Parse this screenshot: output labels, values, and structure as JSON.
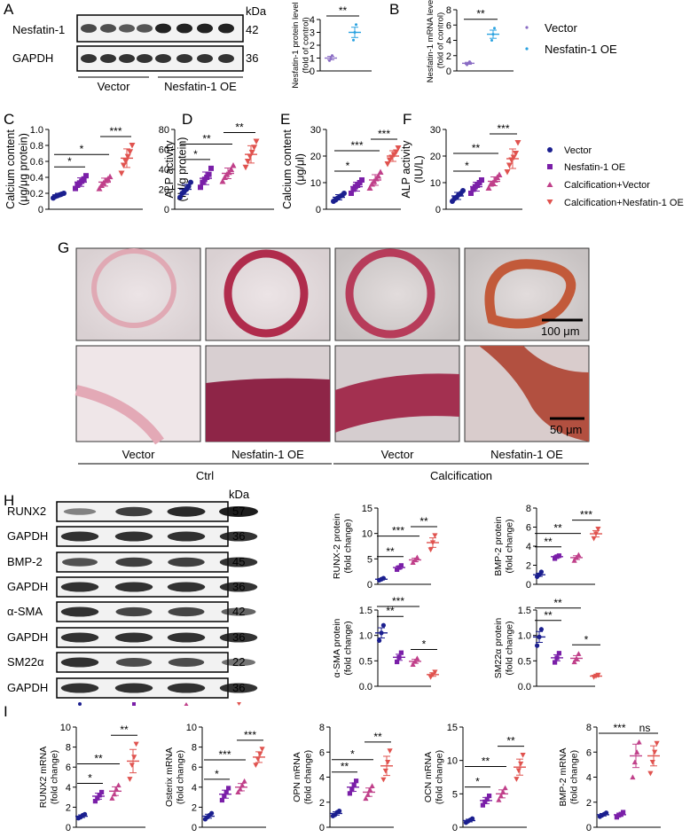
{
  "colors": {
    "vector": "#1b1f8f",
    "nesfatin": "#7a1fa8",
    "calc_vector": "#c0408a",
    "calc_nesfatin": "#e0534f",
    "vector_b": "#8a6cc4",
    "nesfatin_b": "#2aa2e0"
  },
  "panel_letters": [
    "A",
    "B",
    "C",
    "D",
    "E",
    "F",
    "G",
    "H",
    "I"
  ],
  "blot_A": {
    "rows": [
      {
        "label": "Nesfatin-1",
        "kda": "42"
      },
      {
        "label": "GAPDH",
        "kda": "36"
      }
    ],
    "unit": "kDa",
    "groups": [
      "Vector",
      "Nesfatin-1 OE"
    ]
  },
  "legend_B": [
    "Vector",
    "Nesfatin-1 OE"
  ],
  "legend_CF": [
    "Vector",
    "Nesfatin-1 OE",
    "Calcification+Vector",
    "Calcification+Nesfatin-1 OE"
  ],
  "histology": {
    "scale_top": "100 μm",
    "scale_bottom": "50 μm",
    "columns": [
      "Vector",
      "Nesfatin-1 OE",
      "Vector",
      "Nesfatin-1 OE"
    ],
    "groups": [
      "Ctrl",
      "Calcification"
    ]
  },
  "blot_H": {
    "unit": "kDa",
    "rows": [
      {
        "label": "RUNX2",
        "kda": "57"
      },
      {
        "label": "GAPDH",
        "kda": "36"
      },
      {
        "label": "BMP-2",
        "kda": "45"
      },
      {
        "label": "GAPDH",
        "kda": "36"
      },
      {
        "label": "α-SMA",
        "kda": "42"
      },
      {
        "label": "GAPDH",
        "kda": "36"
      },
      {
        "label": "SM22α",
        "kda": "22"
      },
      {
        "label": "GAPDH",
        "kda": "36"
      }
    ]
  },
  "chart_data": [
    {
      "id": "A",
      "type": "scatter",
      "categories": [
        "Vector",
        "Nesfatin-1 OE"
      ],
      "values": [
        1.0,
        3.0
      ],
      "points": [
        [
          0.8,
          1.0,
          1.2
        ],
        [
          2.4,
          3.0,
          3.6
        ]
      ],
      "ylabel": "Nesfatin-1 protein level (fold of control)",
      "ylim": [
        0,
        4
      ],
      "yticks": [
        0,
        1,
        2,
        3,
        4
      ],
      "sig": [
        {
          "a": 0,
          "b": 1,
          "text": "**"
        }
      ]
    },
    {
      "id": "B",
      "type": "scatter",
      "categories": [
        "Vector",
        "Nesfatin-1 OE"
      ],
      "values": [
        1.0,
        4.8
      ],
      "points": [
        [
          0.8,
          1.0,
          1.2
        ],
        [
          4.0,
          4.8,
          5.6
        ]
      ],
      "ylabel": "Nesfatin-1 mRNA level (fold of control)",
      "ylim": [
        0,
        8
      ],
      "yticks": [
        0,
        2,
        4,
        6,
        8
      ],
      "sig": [
        {
          "a": 0,
          "b": 1,
          "text": "**"
        }
      ]
    },
    {
      "id": "C",
      "type": "scatter",
      "categories": [
        "Vector",
        "Nesfatin-1 OE",
        "Calcification+Vector",
        "Calcification+Nesfatin-1 OE"
      ],
      "values": [
        0.18,
        0.34,
        0.34,
        0.64
      ],
      "points": [
        [
          0.14,
          0.16,
          0.17,
          0.18,
          0.19,
          0.2
        ],
        [
          0.26,
          0.3,
          0.33,
          0.35,
          0.38,
          0.42
        ],
        [
          0.26,
          0.3,
          0.33,
          0.36,
          0.38,
          0.41
        ],
        [
          0.45,
          0.55,
          0.6,
          0.66,
          0.72,
          0.8
        ]
      ],
      "ylabel": "Calcium content (μg/μg protein)",
      "ylim": [
        0,
        1.0
      ],
      "yticks": [
        0,
        0.2,
        0.4,
        0.6,
        0.8,
        1.0
      ],
      "sig": [
        {
          "a": 0,
          "b": 1,
          "text": "*"
        },
        {
          "a": 0,
          "b": 2,
          "text": "*"
        },
        {
          "a": 2,
          "b": 3,
          "text": "***"
        }
      ]
    },
    {
      "id": "D",
      "type": "scatter",
      "categories": [
        "Vector",
        "Nesfatin-1 OE",
        "Calcification+Vector",
        "Calcification+Nesfatin-1 OE"
      ],
      "values": [
        20,
        31,
        36,
        55
      ],
      "points": [
        [
          12,
          16,
          18,
          20,
          23,
          27
        ],
        [
          22,
          27,
          30,
          32,
          35,
          41
        ],
        [
          28,
          32,
          35,
          37,
          40,
          44
        ],
        [
          42,
          48,
          53,
          57,
          62,
          68
        ]
      ],
      "ylabel": "ALP activity (IU/g protein)",
      "ylim": [
        0,
        80
      ],
      "yticks": [
        0,
        20,
        40,
        60,
        80
      ],
      "sig": [
        {
          "a": 0,
          "b": 1,
          "text": "*"
        },
        {
          "a": 0,
          "b": 2,
          "text": "**"
        },
        {
          "a": 2,
          "b": 3,
          "text": "**"
        }
      ]
    },
    {
      "id": "E",
      "type": "scatter",
      "categories": [
        "Vector",
        "Nesfatin-1 OE",
        "Calcification+Vector",
        "Calcification+Nesfatin-1 OE"
      ],
      "values": [
        4.5,
        8.5,
        11,
        20
      ],
      "points": [
        [
          3,
          3.5,
          4.2,
          4.8,
          5.2,
          6
        ],
        [
          6,
          7.5,
          8.5,
          9,
          10,
          11
        ],
        [
          8,
          9.5,
          10.5,
          11.5,
          12.5,
          14
        ],
        [
          17,
          18.5,
          19.5,
          20.5,
          21.5,
          23
        ]
      ],
      "ylabel": "Calcium content (μg/μl)",
      "ylim": [
        0,
        30
      ],
      "yticks": [
        0,
        10,
        20,
        30
      ],
      "sig": [
        {
          "a": 0,
          "b": 1,
          "text": "*"
        },
        {
          "a": 0,
          "b": 2,
          "text": "***"
        },
        {
          "a": 2,
          "b": 3,
          "text": "***"
        }
      ]
    },
    {
      "id": "F",
      "type": "scatter",
      "categories": [
        "Vector",
        "Nesfatin-1 OE",
        "Calcification+Vector",
        "Calcification+Nesfatin-1 OE"
      ],
      "values": [
        5,
        8.5,
        10.5,
        19
      ],
      "points": [
        [
          3,
          4,
          4.5,
          5.5,
          6,
          7
        ],
        [
          6,
          7.5,
          8.5,
          9,
          10,
          11
        ],
        [
          8,
          9.5,
          10,
          11,
          12,
          13
        ],
        [
          14,
          16.5,
          18.5,
          19.5,
          21,
          25
        ]
      ],
      "ylabel": "ALP activity (IU/L)",
      "ylim": [
        0,
        30
      ],
      "yticks": [
        0,
        10,
        20,
        30
      ],
      "sig": [
        {
          "a": 0,
          "b": 1,
          "text": "*"
        },
        {
          "a": 0,
          "b": 2,
          "text": "**"
        },
        {
          "a": 2,
          "b": 3,
          "text": "***"
        }
      ]
    },
    {
      "id": "H1",
      "type": "scatter",
      "categories": [
        "Vector",
        "Nesfatin-1 OE",
        "Calcification+Vector",
        "Calcification+Nesfatin-1 OE"
      ],
      "values": [
        1.0,
        3.3,
        4.8,
        8.2
      ],
      "points": [
        [
          0.8,
          1.0,
          1.2
        ],
        [
          2.9,
          3.3,
          3.7
        ],
        [
          4.3,
          4.8,
          5.3
        ],
        [
          6.8,
          8.2,
          9.6
        ]
      ],
      "ylabel": "RUNX-2 protein (fold change)",
      "ylim": [
        0,
        15
      ],
      "yticks": [
        0,
        5,
        10,
        15
      ],
      "sig": [
        {
          "a": 0,
          "b": 1,
          "text": "**"
        },
        {
          "a": 0,
          "b": 2,
          "text": "***"
        },
        {
          "a": 2,
          "b": 3,
          "text": "**"
        }
      ]
    },
    {
      "id": "H2",
      "type": "scatter",
      "categories": [
        "Vector",
        "Nesfatin-1 OE",
        "Calcification+Vector",
        "Calcification+Nesfatin-1 OE"
      ],
      "values": [
        1.0,
        2.9,
        2.8,
        5.3
      ],
      "points": [
        [
          0.8,
          1.0,
          1.3
        ],
        [
          2.7,
          2.9,
          3.0
        ],
        [
          2.5,
          2.8,
          3.1
        ],
        [
          4.8,
          5.3,
          5.8
        ]
      ],
      "ylabel": "BMP-2 protein (fold change)",
      "ylim": [
        0,
        8
      ],
      "yticks": [
        0,
        2,
        4,
        6,
        8
      ],
      "sig": [
        {
          "a": 0,
          "b": 1,
          "text": "**"
        },
        {
          "a": 0,
          "b": 2,
          "text": "**"
        },
        {
          "a": 2,
          "b": 3,
          "text": "***"
        }
      ]
    },
    {
      "id": "H3",
      "type": "scatter",
      "categories": [
        "Vector",
        "Nesfatin-1 OE",
        "Calcification+Vector",
        "Calcification+Nesfatin-1 OE"
      ],
      "values": [
        1.05,
        0.57,
        0.49,
        0.23
      ],
      "points": [
        [
          0.9,
          1.05,
          1.2
        ],
        [
          0.48,
          0.57,
          0.66
        ],
        [
          0.43,
          0.49,
          0.55
        ],
        [
          0.18,
          0.23,
          0.28
        ]
      ],
      "ylabel": "α-SMA protein (fold change)",
      "ylim": [
        0,
        1.5
      ],
      "yticks": [
        0.0,
        0.5,
        1.0,
        1.5
      ],
      "sig": [
        {
          "a": 0,
          "b": 1,
          "text": "**"
        },
        {
          "a": 0,
          "b": 2,
          "text": "***"
        },
        {
          "a": 2,
          "b": 3,
          "text": "*"
        }
      ]
    },
    {
      "id": "H4",
      "type": "scatter",
      "categories": [
        "Vector",
        "Nesfatin-1 OE",
        "Calcification+Vector",
        "Calcification+Nesfatin-1 OE"
      ],
      "values": [
        0.97,
        0.56,
        0.55,
        0.2
      ],
      "points": [
        [
          0.8,
          0.97,
          1.12
        ],
        [
          0.47,
          0.56,
          0.65
        ],
        [
          0.48,
          0.55,
          0.64
        ],
        [
          0.18,
          0.2,
          0.22
        ]
      ],
      "ylabel": "SM22α protein (fold change)",
      "ylim": [
        0,
        1.5
      ],
      "yticks": [
        0.0,
        0.5,
        1.0,
        1.5
      ],
      "sig": [
        {
          "a": 0,
          "b": 1,
          "text": "**"
        },
        {
          "a": 0,
          "b": 2,
          "text": "**"
        },
        {
          "a": 2,
          "b": 3,
          "text": "*"
        }
      ]
    },
    {
      "id": "I1",
      "type": "scatter",
      "categories": [
        "Vector",
        "Nesfatin-1 OE",
        "Calcification+Vector",
        "Calcification+Nesfatin-1 OE"
      ],
      "values": [
        1.1,
        3.1,
        3.6,
        6.6
      ],
      "points": [
        [
          0.9,
          1.0,
          1.2,
          1.3
        ],
        [
          2.6,
          2.9,
          3.2,
          3.5
        ],
        [
          2.9,
          3.3,
          3.8,
          4.2
        ],
        [
          4.8,
          6.2,
          7.0,
          8.3
        ]
      ],
      "ylabel": "RUNX2 mRNA (fold change)",
      "ylim": [
        0,
        10
      ],
      "yticks": [
        0,
        2,
        4,
        6,
        8,
        10
      ],
      "sig": [
        {
          "a": 0,
          "b": 1,
          "text": "*"
        },
        {
          "a": 0,
          "b": 2,
          "text": "**"
        },
        {
          "a": 2,
          "b": 3,
          "text": "**"
        }
      ]
    },
    {
      "id": "I2",
      "type": "scatter",
      "categories": [
        "Vector",
        "Nesfatin-1 OE",
        "Calcification+Vector",
        "Calcification+Nesfatin-1 OE"
      ],
      "values": [
        1.1,
        3.3,
        4.0,
        7.0
      ],
      "points": [
        [
          0.8,
          1.0,
          1.2,
          1.4
        ],
        [
          2.7,
          3.1,
          3.5,
          3.9
        ],
        [
          3.5,
          3.8,
          4.2,
          4.6
        ],
        [
          6.2,
          6.8,
          7.3,
          7.8
        ]
      ],
      "ylabel": "Osterix mRNA (fold change)",
      "ylim": [
        0,
        10
      ],
      "yticks": [
        0,
        2,
        4,
        6,
        8,
        10
      ],
      "sig": [
        {
          "a": 0,
          "b": 1,
          "text": "*"
        },
        {
          "a": 0,
          "b": 2,
          "text": "***"
        },
        {
          "a": 2,
          "b": 3,
          "text": "***"
        }
      ]
    },
    {
      "id": "I3",
      "type": "scatter",
      "categories": [
        "Vector",
        "Nesfatin-1 OE",
        "Calcification+Vector",
        "Calcification+Nesfatin-1 OE"
      ],
      "values": [
        1.1,
        3.2,
        2.8,
        4.9
      ],
      "points": [
        [
          0.9,
          1.0,
          1.2,
          1.3
        ],
        [
          2.7,
          3.0,
          3.4,
          3.7
        ],
        [
          2.3,
          2.6,
          3.0,
          3.3
        ],
        [
          3.8,
          4.5,
          5.2,
          6.1
        ]
      ],
      "ylabel": "OPN mRNA (fold change)",
      "ylim": [
        0,
        8
      ],
      "yticks": [
        0,
        2,
        4,
        6,
        8
      ],
      "sig": [
        {
          "a": 0,
          "b": 1,
          "text": "**"
        },
        {
          "a": 0,
          "b": 2,
          "text": "*"
        },
        {
          "a": 2,
          "b": 3,
          "text": "**"
        }
      ]
    },
    {
      "id": "I4",
      "type": "scatter",
      "categories": [
        "Vector",
        "Nesfatin-1 OE",
        "Calcification+Vector",
        "Calcification+Nesfatin-1 OE"
      ],
      "values": [
        1.0,
        4.0,
        5.0,
        9.0
      ],
      "points": [
        [
          0.7,
          0.9,
          1.1,
          1.3
        ],
        [
          3.3,
          3.8,
          4.2,
          4.7
        ],
        [
          4.1,
          4.7,
          5.3,
          5.9
        ],
        [
          7.2,
          8.5,
          9.5,
          10.8
        ]
      ],
      "ylabel": "OCN mRNA (fold change)",
      "ylim": [
        0,
        15
      ],
      "yticks": [
        0,
        5,
        10,
        15
      ],
      "sig": [
        {
          "a": 0,
          "b": 1,
          "text": "*"
        },
        {
          "a": 0,
          "b": 2,
          "text": "**"
        },
        {
          "a": 2,
          "b": 3,
          "text": "**"
        }
      ]
    },
    {
      "id": "I5",
      "type": "scatter",
      "categories": [
        "Vector",
        "Nesfatin-1 OE",
        "Calcification+Vector",
        "Calcification+Nesfatin-1 OE"
      ],
      "values": [
        1.0,
        1.0,
        5.7,
        5.7
      ],
      "points": [
        [
          0.85,
          0.95,
          1.05,
          1.15
        ],
        [
          0.8,
          0.95,
          1.05,
          1.2
        ],
        [
          4.0,
          5.2,
          6.0,
          6.8
        ],
        [
          4.3,
          5.2,
          6.0,
          6.7
        ]
      ],
      "ylabel": "BMP-2 mRNA (fold change)",
      "ylim": [
        0,
        8
      ],
      "yticks": [
        0,
        2,
        4,
        6,
        8
      ],
      "sig": [
        {
          "a": 0,
          "b": 2,
          "text": "***"
        },
        {
          "a": 2,
          "b": 3,
          "text": "ns"
        }
      ]
    }
  ]
}
